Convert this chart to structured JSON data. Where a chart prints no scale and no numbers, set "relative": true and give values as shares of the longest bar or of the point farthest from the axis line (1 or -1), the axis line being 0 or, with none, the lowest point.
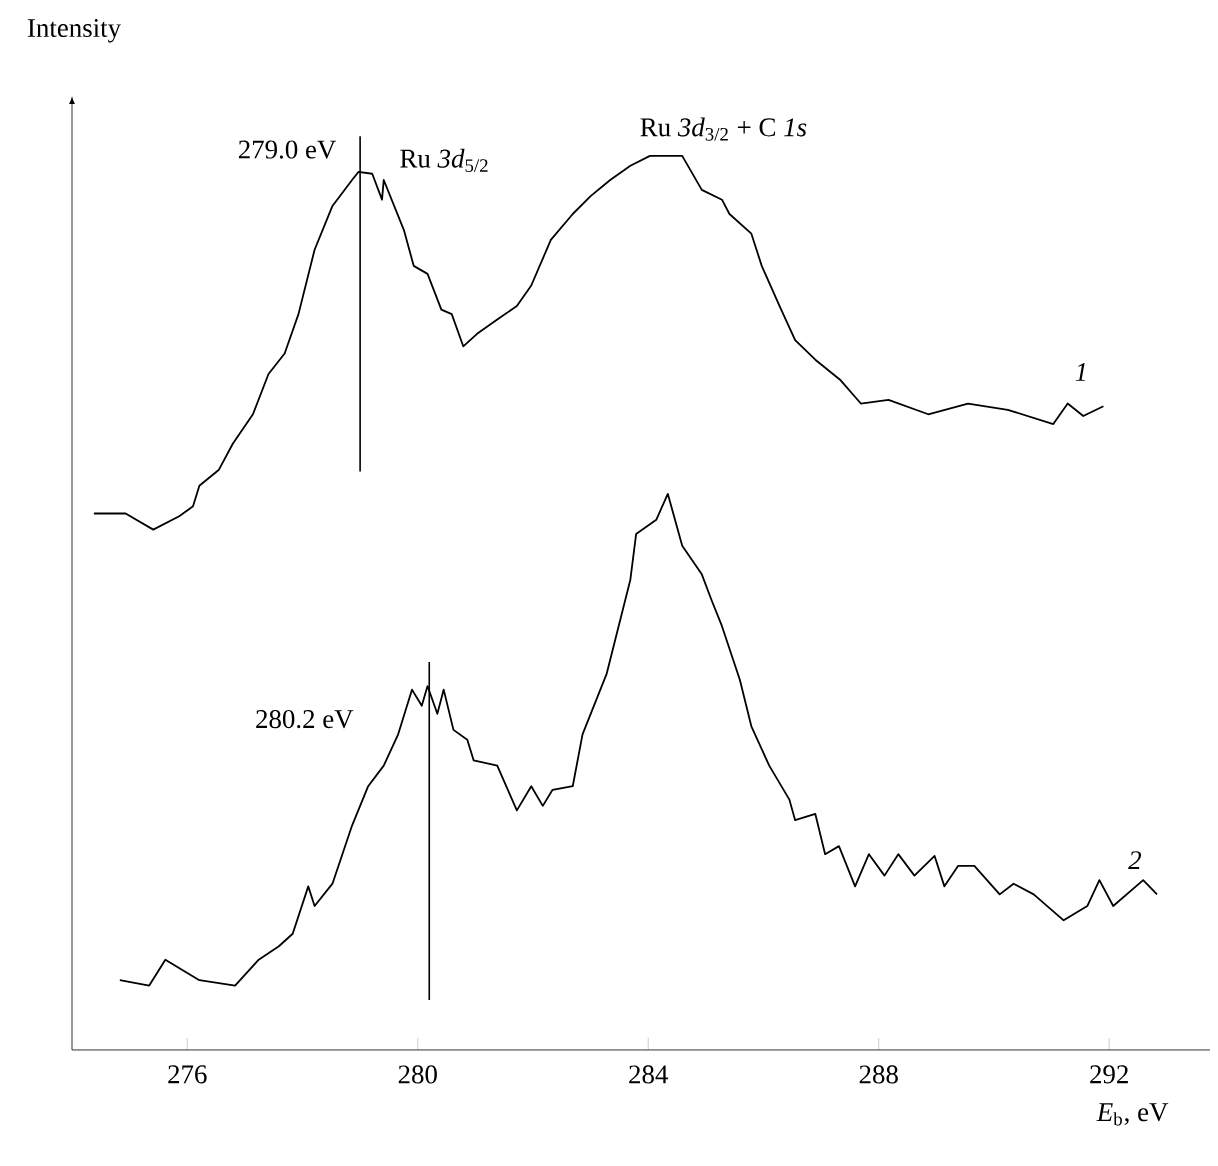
{
  "chart_data": {
    "type": "line",
    "relative": true,
    "xlabel": "*E*$_{b}$, eV",
    "ylabel": "Intensity",
    "xlim": [
      274.0,
      293.75
    ],
    "xticks": [
      276,
      280,
      284,
      288,
      292
    ],
    "marker": "none",
    "line_style": "solid",
    "annotations": [
      "Ru *3d*$_{5/2}$",
      "Ru *3d*$_{3/2}$ + C *1s*"
    ],
    "ref_lines": [
      {
        "axis": "x",
        "value": 279.0,
        "label": "279.0 eV"
      },
      {
        "axis": "x",
        "value": 280.2,
        "label": "280.2 eV"
      }
    ],
    "series": [
      {
        "name": "*1*",
        "color": "#000000",
        "x": [
          274.38,
          274.93,
          275.41,
          275.86,
          276.1,
          276.21,
          276.55,
          276.79,
          277.14,
          277.41,
          277.69,
          277.93,
          278.21,
          278.52,
          278.86,
          278.97,
          279.21,
          279.38,
          279.41,
          279.76,
          279.93,
          280.17,
          280.41,
          280.59,
          280.79,
          281.03,
          281.38,
          281.72,
          281.97,
          282.31,
          282.69,
          283.0,
          283.34,
          283.69,
          284.03,
          284.14,
          284.59,
          284.93,
          285.28,
          285.41,
          285.79,
          285.97,
          286.28,
          286.55,
          286.9,
          287.34,
          287.69,
          288.17,
          288.86,
          289.55,
          290.24,
          291.03,
          291.28,
          291.55,
          291.9
        ],
        "values": [
          0.6,
          0.6,
          0.582,
          0.597,
          0.608,
          0.631,
          0.649,
          0.678,
          0.711,
          0.756,
          0.779,
          0.823,
          0.895,
          0.944,
          0.973,
          0.982,
          0.98,
          0.951,
          0.973,
          0.917,
          0.877,
          0.868,
          0.828,
          0.823,
          0.787,
          0.801,
          0.817,
          0.832,
          0.855,
          0.906,
          0.935,
          0.955,
          0.973,
          0.989,
          1.0,
          1.0,
          1.0,
          0.962,
          0.951,
          0.935,
          0.913,
          0.877,
          0.832,
          0.794,
          0.772,
          0.749,
          0.723,
          0.727,
          0.711,
          0.723,
          0.716,
          0.7,
          0.723,
          0.709,
          0.72
        ]
      },
      {
        "name": "*2*",
        "color": "#000000",
        "x": [
          274.83,
          275.34,
          275.62,
          276.21,
          276.83,
          277.24,
          277.59,
          277.83,
          278.1,
          278.21,
          278.52,
          278.86,
          279.14,
          279.41,
          279.66,
          279.9,
          280.07,
          280.17,
          280.34,
          280.45,
          280.62,
          280.86,
          280.97,
          281.38,
          281.72,
          281.97,
          282.17,
          282.34,
          282.69,
          282.86,
          283.28,
          283.69,
          283.79,
          284.14,
          284.34,
          284.59,
          284.93,
          285.1,
          285.28,
          285.59,
          285.79,
          286.1,
          286.45,
          286.55,
          286.9,
          287.07,
          287.31,
          287.59,
          287.83,
          288.1,
          288.34,
          288.62,
          288.97,
          289.14,
          289.38,
          289.66,
          290.1,
          290.34,
          290.69,
          291.21,
          291.62,
          291.83,
          292.07,
          292.59,
          292.83
        ],
        "values": [
          0.078,
          0.072,
          0.101,
          0.078,
          0.072,
          0.101,
          0.116,
          0.13,
          0.183,
          0.161,
          0.186,
          0.251,
          0.295,
          0.318,
          0.353,
          0.403,
          0.385,
          0.407,
          0.376,
          0.403,
          0.358,
          0.347,
          0.324,
          0.318,
          0.268,
          0.295,
          0.273,
          0.291,
          0.295,
          0.353,
          0.421,
          0.526,
          0.577,
          0.593,
          0.622,
          0.564,
          0.532,
          0.503,
          0.474,
          0.414,
          0.362,
          0.318,
          0.28,
          0.257,
          0.264,
          0.219,
          0.228,
          0.183,
          0.219,
          0.195,
          0.219,
          0.195,
          0.217,
          0.183,
          0.206,
          0.206,
          0.174,
          0.186,
          0.174,
          0.145,
          0.161,
          0.19,
          0.161,
          0.19,
          0.174
        ]
      }
    ]
  }
}
